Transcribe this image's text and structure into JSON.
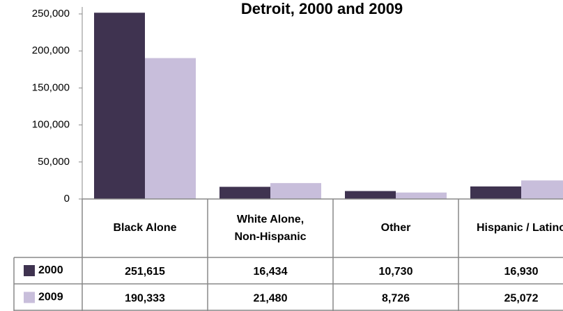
{
  "chart_data": {
    "type": "bar",
    "title": "Detroit, 2000 and 2009",
    "categories": [
      "Black Alone",
      "White Alone, Non-Hispanic",
      "Other",
      "Hispanic / Latino"
    ],
    "series": [
      {
        "name": "2000",
        "color": "#3f3350",
        "values": [
          251615,
          16434,
          10730,
          16930
        ],
        "value_labels": [
          "251,615",
          "16,434",
          "10,730",
          "16,930"
        ]
      },
      {
        "name": "2009",
        "color": "#c8bedb",
        "values": [
          190333,
          21480,
          8726,
          25072
        ],
        "value_labels": [
          "190,333",
          "21,480",
          "8,726",
          "25,072"
        ]
      }
    ],
    "ylim": [
      0,
      250000
    ],
    "yticks": [
      0,
      {
        "value": 50000,
        "label": "50,000"
      },
      {
        "value": 100000,
        "label": "100,000"
      },
      {
        "value": 150000,
        "label": "150,000"
      },
      {
        "value": 200000,
        "label": "200,000"
      },
      {
        "value": 250000,
        "label": "250,000"
      }
    ]
  }
}
